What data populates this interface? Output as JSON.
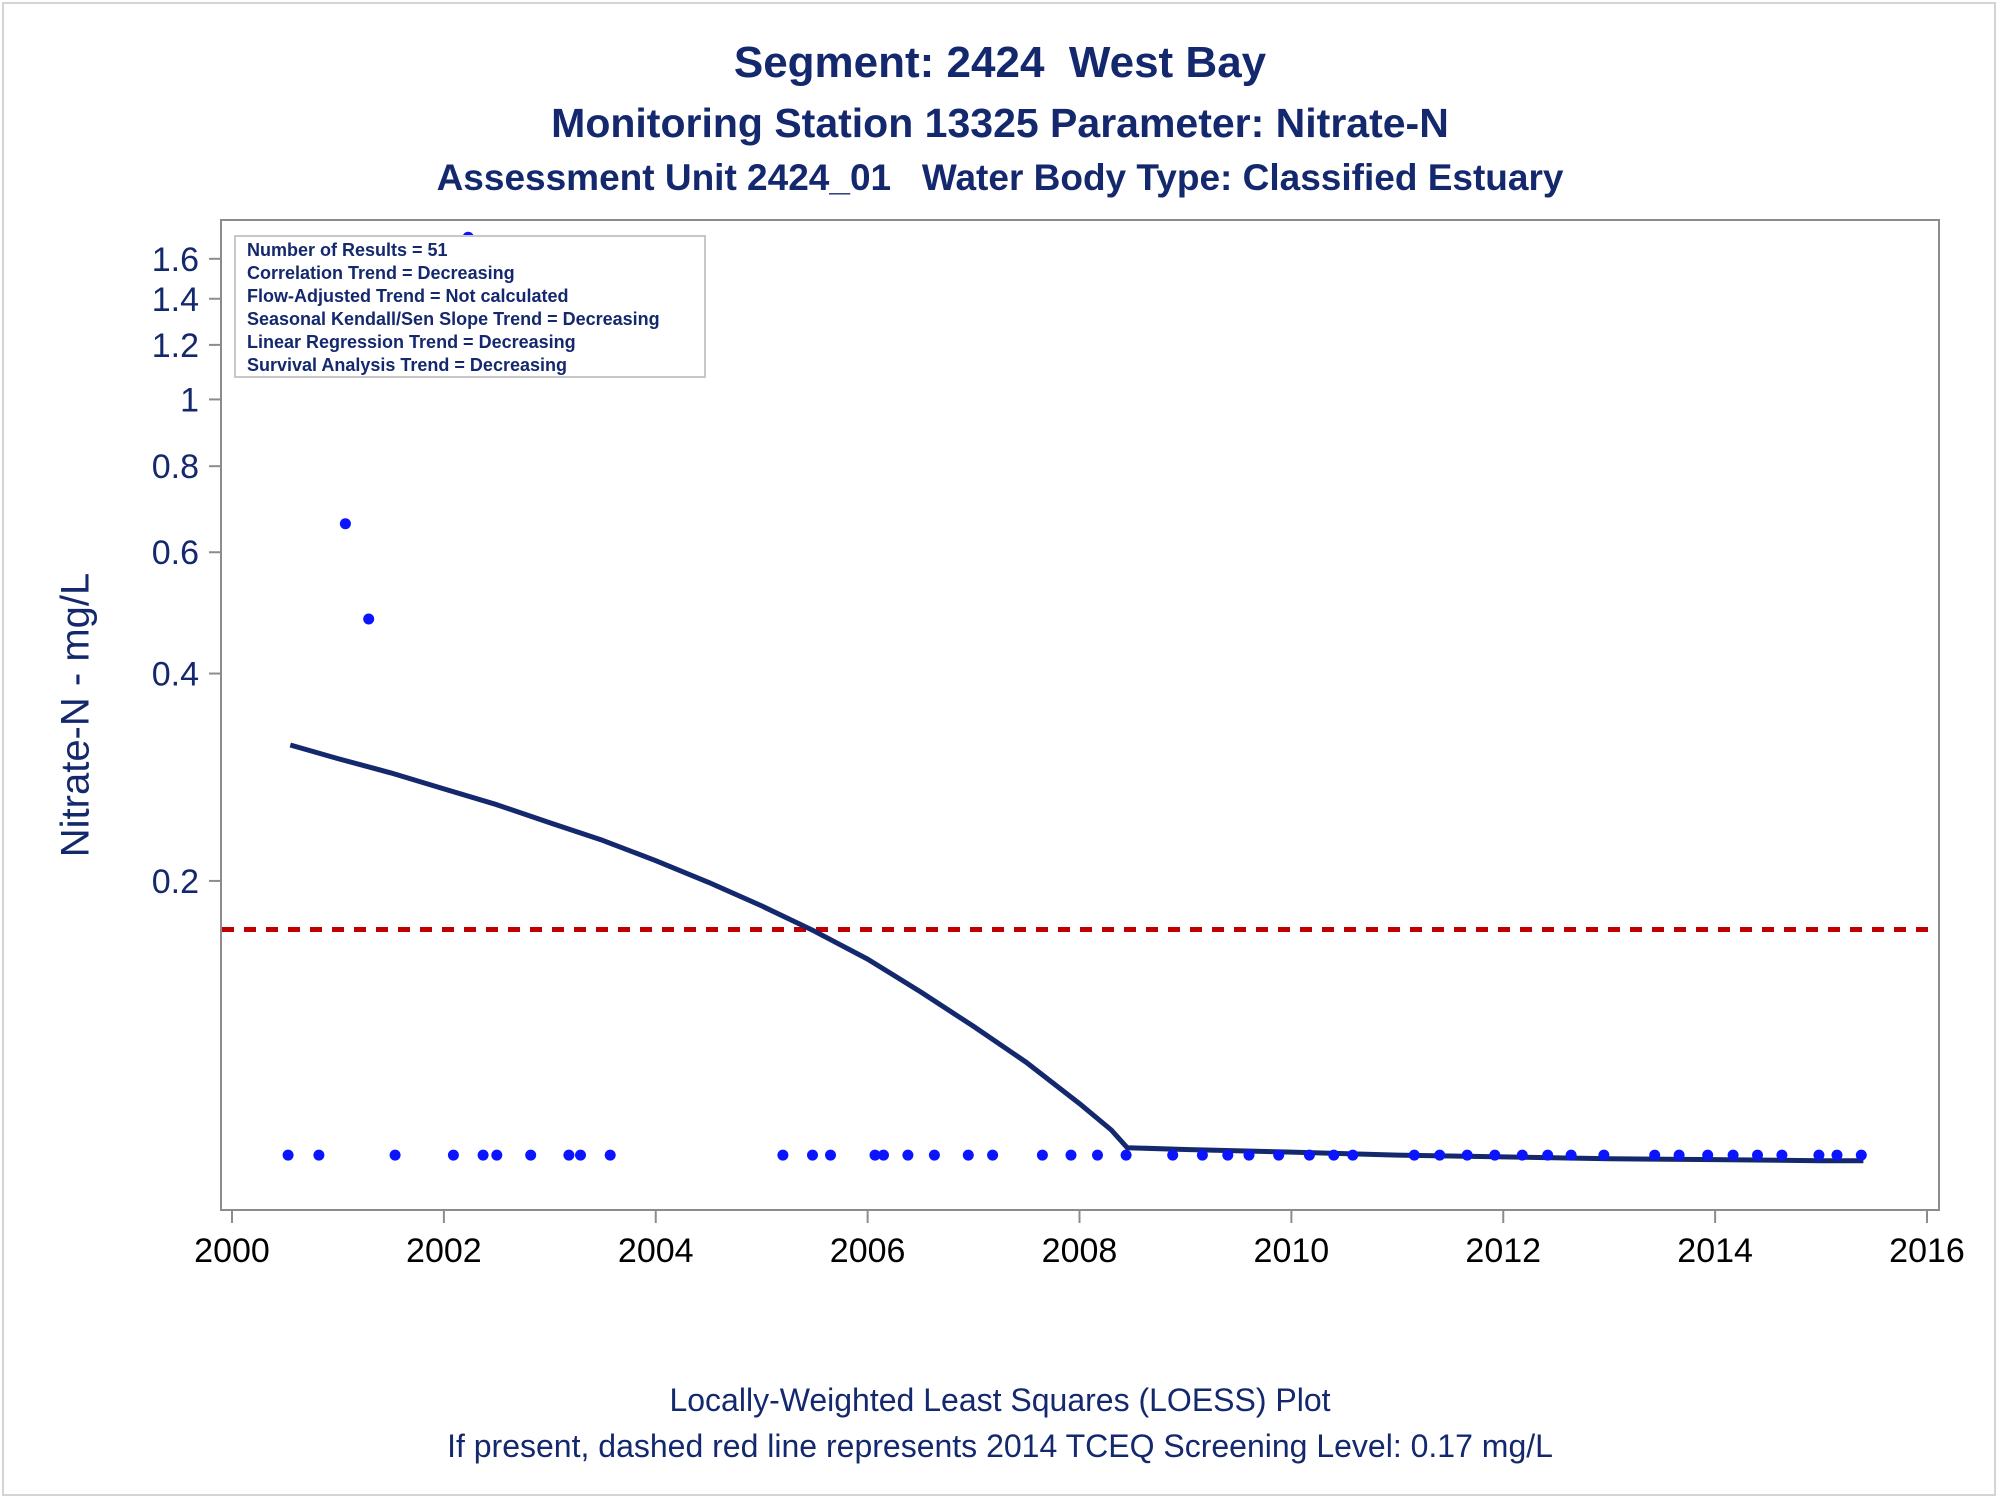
{
  "chart_data": {
    "type": "scatter",
    "title": "Segment: 2424  West Bay",
    "subtitle": "Monitoring Station 13325 Parameter: Nitrate-N",
    "subtitle2": "Assessment Unit 2424_01   Water Body Type: Classified Estuary",
    "ylabel": "Nitrate-N - mg/L",
    "xlabel": "",
    "xlim": [
      2000,
      2016
    ],
    "y_scale": "log",
    "ylim": [
      0.07,
      1.75
    ],
    "x_ticks": [
      2000,
      2002,
      2004,
      2006,
      2008,
      2010,
      2012,
      2014,
      2016
    ],
    "y_ticks": [
      0.2,
      0.4,
      0.6,
      0.8,
      1,
      1.2,
      1.4,
      1.6
    ],
    "y_tick_labels": [
      "0.2",
      "0.4",
      "0.6",
      "0.8",
      "1",
      "1.2",
      "1.4",
      "1.6"
    ],
    "grid": false,
    "stats_box": [
      "Number of Results = 51",
      "Correlation Trend = Decreasing",
      "Flow-Adjusted Trend = Not calculated",
      "Seasonal Kendall/Sen Slope Trend = Decreasing",
      "Linear Regression Trend = Decreasing",
      "Survival Analysis Trend = Decreasing"
    ],
    "stats_placement": "top-left",
    "screening_level": {
      "value": 0.17,
      "style": "dashed",
      "color": "#c00000"
    },
    "points": {
      "name": "Nitrate-N results",
      "color": "#0a14ff",
      "x": [
        2000.53,
        2000.82,
        2001.07,
        2001.29,
        2001.54,
        2002.09,
        2002.37,
        2002.5,
        2002.82,
        2003.18,
        2003.29,
        2003.57,
        2002.23,
        2005.2,
        2005.48,
        2005.65,
        2006.07,
        2006.15,
        2006.38,
        2006.63,
        2006.95,
        2007.18,
        2007.65,
        2007.92,
        2008.17,
        2008.44,
        2008.88,
        2009.16,
        2009.4,
        2009.6,
        2009.88,
        2010.17,
        2010.4,
        2010.58,
        2011.16,
        2011.4,
        2011.66,
        2011.92,
        2012.18,
        2012.42,
        2012.64,
        2012.95,
        2013.43,
        2013.66,
        2013.93,
        2014.17,
        2014.4,
        2014.63,
        2014.98,
        2015.15,
        2015.38
      ],
      "y": [
        0.08,
        0.08,
        0.66,
        0.48,
        0.08,
        0.08,
        0.08,
        0.08,
        0.08,
        0.08,
        0.08,
        0.08,
        1.72,
        0.08,
        0.08,
        0.08,
        0.08,
        0.08,
        0.08,
        0.08,
        0.08,
        0.08,
        0.08,
        0.08,
        0.08,
        0.08,
        0.08,
        0.08,
        0.08,
        0.08,
        0.08,
        0.08,
        0.08,
        0.08,
        0.08,
        0.08,
        0.08,
        0.08,
        0.08,
        0.08,
        0.08,
        0.08,
        0.08,
        0.08,
        0.08,
        0.08,
        0.08,
        0.08,
        0.08,
        0.08,
        0.08
      ]
    },
    "loess": {
      "name": "LOESS",
      "color": "#14286e",
      "x": [
        2000.55,
        2001,
        2001.5,
        2002,
        2002.5,
        2003,
        2003.5,
        2004,
        2004.5,
        2005,
        2005.5,
        2006,
        2006.5,
        2007,
        2007.5,
        2008,
        2008.3,
        2008.45,
        2009,
        2010,
        2011,
        2012,
        2013,
        2014,
        2015,
        2015.4
      ],
      "y": [
        0.315,
        0.301,
        0.287,
        0.272,
        0.258,
        0.243,
        0.229,
        0.214,
        0.199,
        0.184,
        0.169,
        0.154,
        0.138,
        0.123,
        0.109,
        0.095,
        0.087,
        0.082,
        0.0815,
        0.0808,
        0.08,
        0.0795,
        0.079,
        0.0788,
        0.0785,
        0.0785
      ]
    }
  },
  "footer": {
    "line1": "Locally-Weighted Least Squares (LOESS) Plot",
    "line2": "If present, dashed red line represents 2014 TCEQ Screening Level: 0.17 mg/L"
  }
}
